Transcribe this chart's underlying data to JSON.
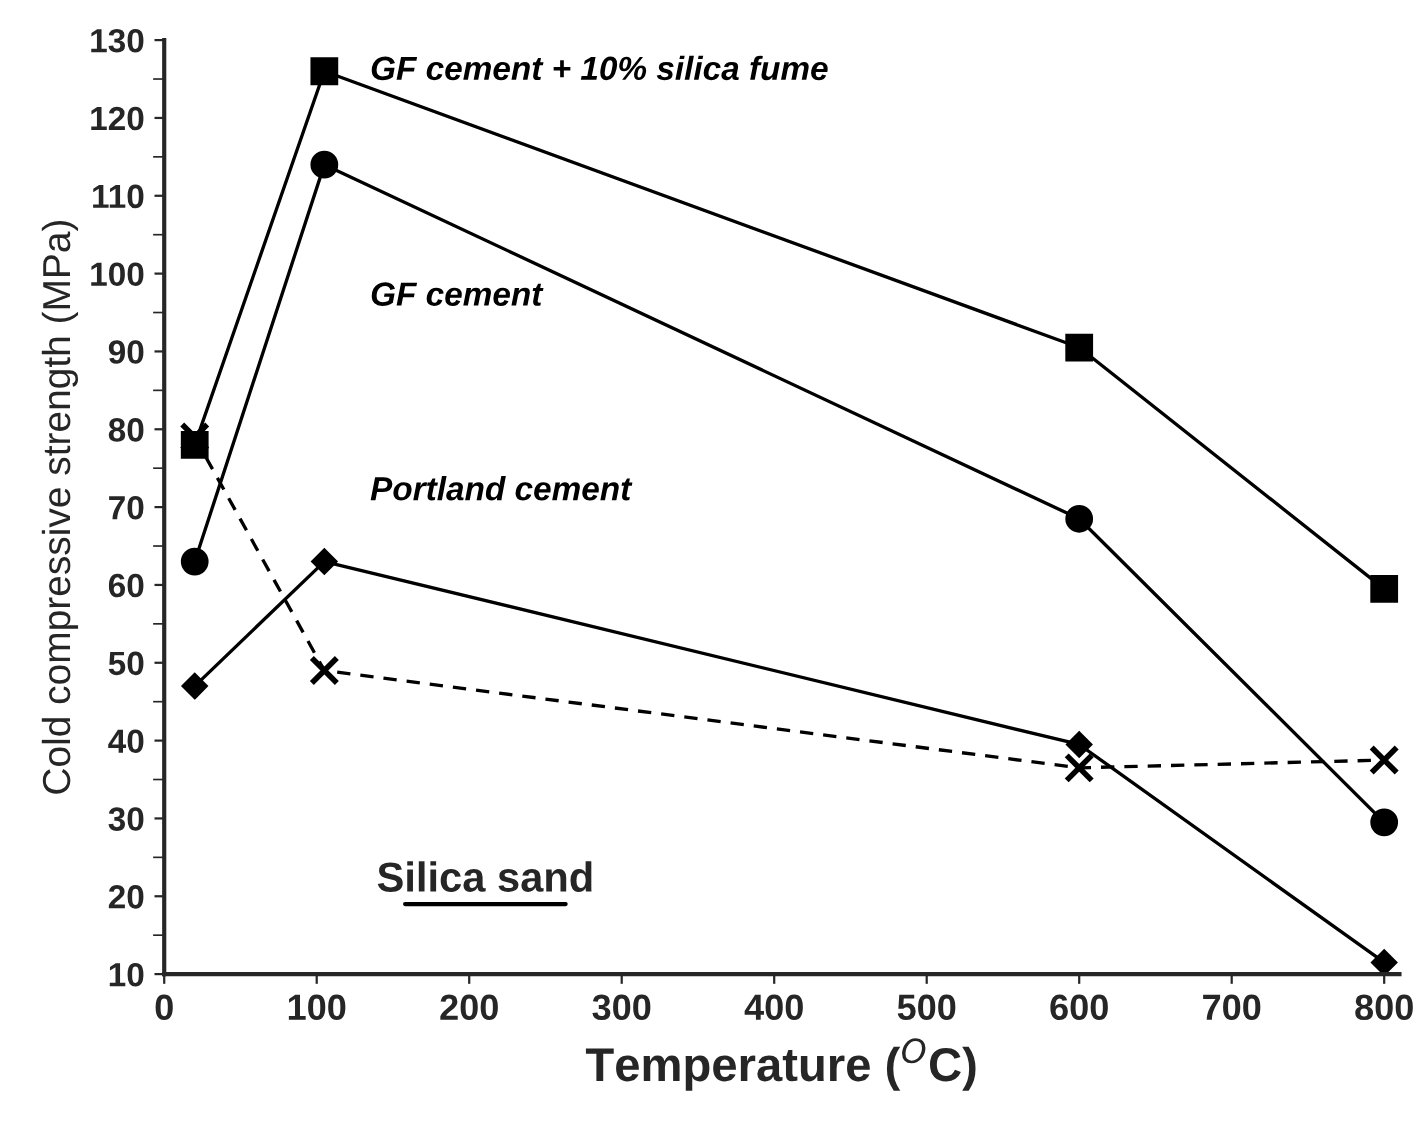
{
  "chart_data": {
    "type": "line",
    "xlabel": "Temperature ($^{O}$C)",
    "ylabel": "Cold compressive strength (MPa)",
    "x": [
      20,
      105,
      600,
      800
    ],
    "series": [
      {
        "name": "GF cement + 10% silica fume",
        "color": "#000000",
        "marker": "square",
        "line_style": "solid",
        "values": [
          78,
          126,
          90.5,
          59.5
        ]
      },
      {
        "name": "GF cement",
        "color": "#000000",
        "marker": "circle",
        "line_style": "solid",
        "values": [
          63,
          114,
          68.5,
          29.5
        ]
      },
      {
        "name": "Portland cement",
        "color": "#000000",
        "marker": "diamond",
        "line_style": "solid",
        "values": [
          47,
          63,
          39.5,
          11.5
        ]
      },
      {
        "color": "#000000",
        "marker": "cross",
        "line_style": "dashed",
        "values": [
          79,
          49,
          36.5,
          37.5
        ]
      }
    ],
    "xlim": [
      0,
      810
    ],
    "xticks": [
      0,
      100,
      200,
      300,
      400,
      500,
      600,
      700,
      800
    ],
    "ylim": [
      10,
      130
    ],
    "yticks": [
      10,
      20,
      30,
      40,
      50,
      60,
      70,
      80,
      90,
      100,
      110,
      120,
      130
    ],
    "grid": false,
    "legend": false,
    "annotations": [
      "Silica sand"
    ]
  }
}
